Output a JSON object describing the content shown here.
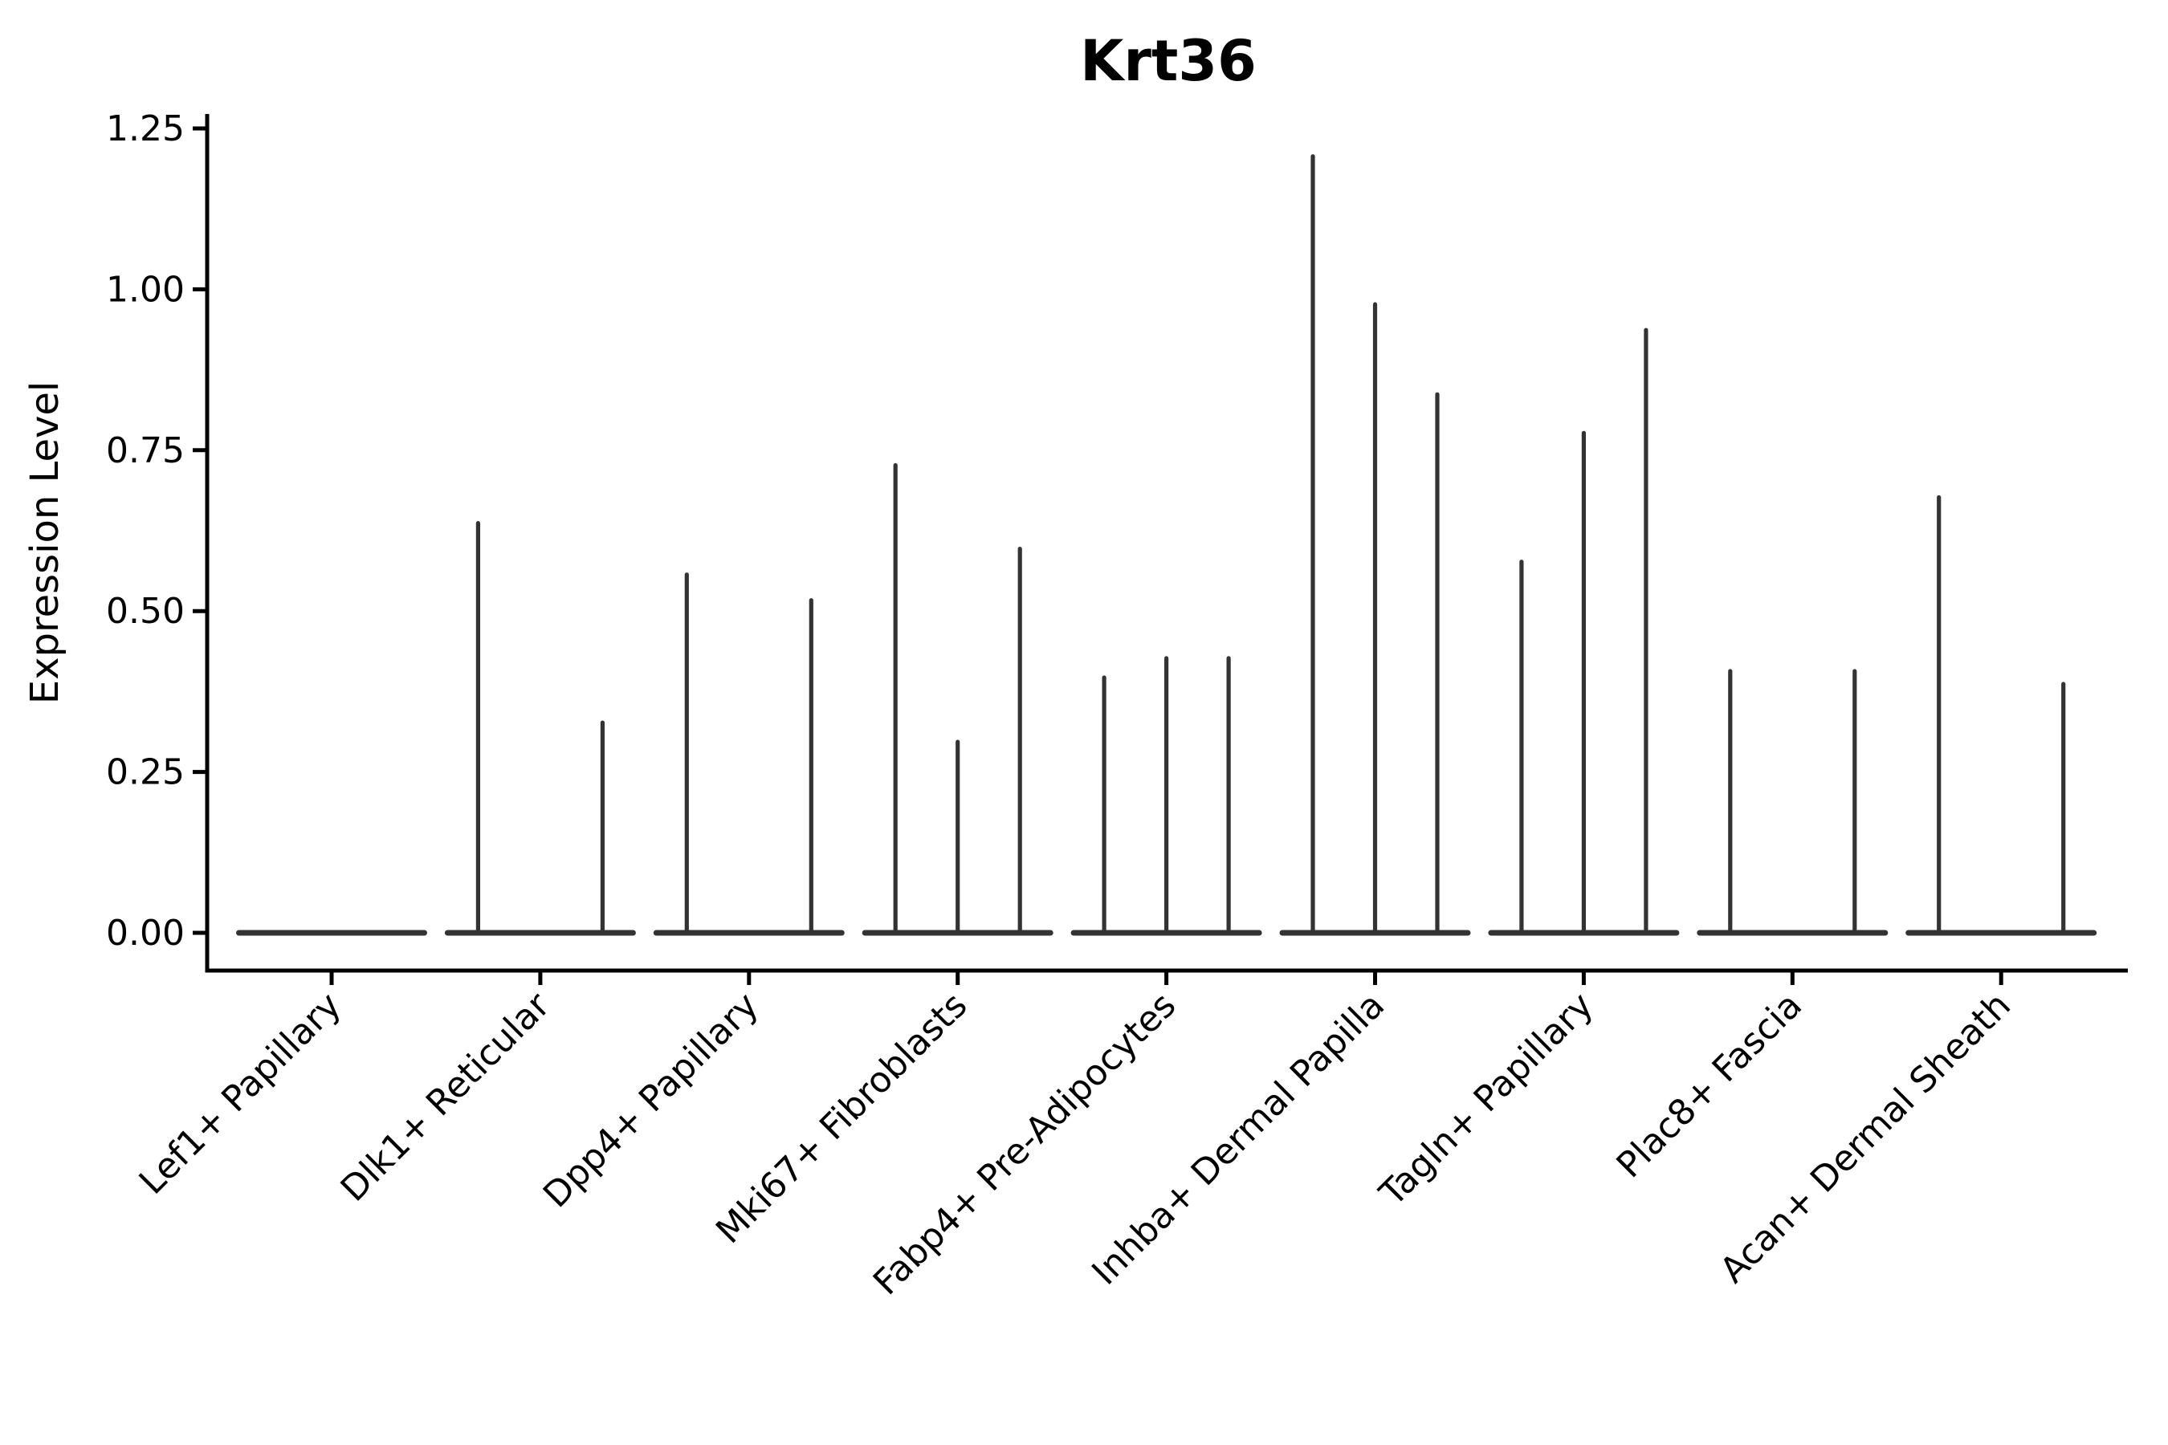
{
  "figure": {
    "background_color": "#ffffff",
    "axis_color": "#000000",
    "violin_color": "#333333"
  },
  "chart_data": {
    "type": "violin",
    "title": "Krt36",
    "xlabel": "",
    "ylabel": "Expression Level",
    "ylim": [
      -0.06,
      1.27
    ],
    "y_ticks": [
      0.0,
      0.25,
      0.5,
      0.75,
      1.0,
      1.25
    ],
    "y_tick_labels": [
      "0.00",
      "0.25",
      "0.50",
      "0.75",
      "1.00",
      "1.25"
    ],
    "grid": false,
    "legend": "none",
    "spines": [
      "left",
      "bottom"
    ],
    "x_tick_rotation_deg": 45,
    "groups_per_category": 3,
    "subgroup_positions": [
      "left",
      "center",
      "right"
    ],
    "note": "Sparse-expression violins: each category shows a flat body at 0 plus up to three thin density spikes (one per sub-violin); null = sub-violin fully flat at 0.",
    "categories": [
      "Lef1+ Papillary",
      "Dlk1+ Reticular",
      "Dpp4+ Papillary",
      "Mki67+ Fibroblasts",
      "Fabp4+ Pre-Adipocytes",
      "Inhba+ Dermal Papilla",
      "Tagln+ Papillary",
      "Plac8+ Fascia",
      "Acan+ Dermal Sheath"
    ],
    "series": [
      {
        "category": "Lef1+ Papillary",
        "spike_heights": [
          null,
          null,
          null
        ]
      },
      {
        "category": "Dlk1+ Reticular",
        "spike_heights": [
          0.64,
          null,
          0.33
        ]
      },
      {
        "category": "Dpp4+ Papillary",
        "spike_heights": [
          0.56,
          null,
          0.52
        ]
      },
      {
        "category": "Mki67+ Fibroblasts",
        "spike_heights": [
          0.73,
          0.3,
          0.6
        ]
      },
      {
        "category": "Fabp4+ Pre-Adipocytes",
        "spike_heights": [
          0.4,
          0.43,
          0.43
        ]
      },
      {
        "category": "Inhba+ Dermal Papilla",
        "spike_heights": [
          1.21,
          0.98,
          0.84
        ]
      },
      {
        "category": "Tagln+ Papillary",
        "spike_heights": [
          0.58,
          0.78,
          0.94
        ]
      },
      {
        "category": "Plac8+ Fascia",
        "spike_heights": [
          0.41,
          null,
          0.41
        ]
      },
      {
        "category": "Acan+ Dermal Sheath",
        "spike_heights": [
          0.68,
          null,
          0.39
        ]
      }
    ]
  }
}
